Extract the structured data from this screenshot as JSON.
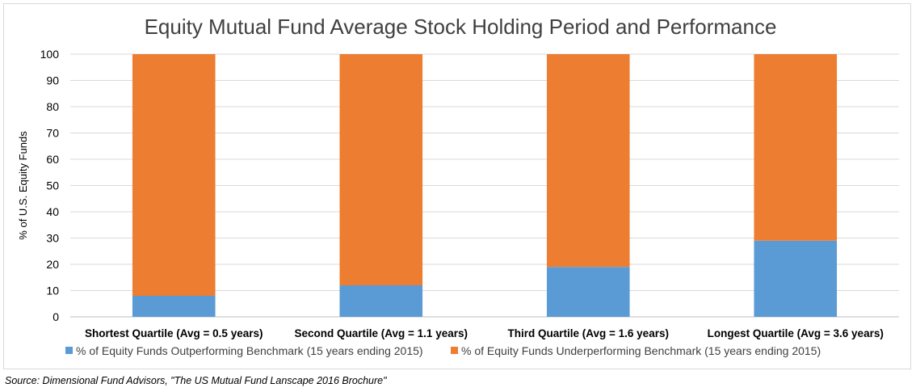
{
  "chart_data": {
    "type": "bar",
    "stacked": true,
    "title": "Equity Mutual Fund Average Stock Holding Period and Performance",
    "ylabel": "% of U.S. Equity Funds",
    "xlabel": "",
    "ylim": [
      0,
      100
    ],
    "yticks": [
      0,
      10,
      20,
      30,
      40,
      50,
      60,
      70,
      80,
      90,
      100
    ],
    "grid": true,
    "legend_position": "bottom",
    "categories": [
      "Shortest Quartile (Avg = 0.5 years)",
      "Second Quartile (Avg = 1.1 years)",
      "Third Quartile (Avg = 1.6 years)",
      "Longest Quartile (Avg = 3.6 years)"
    ],
    "series": [
      {
        "name": "% of Equity Funds Outperforming Benchmark (15 years ending 2015)",
        "color": "#5b9bd5",
        "values": [
          8,
          12,
          19,
          29
        ]
      },
      {
        "name": "% of Equity Funds Underperforming Benchmark (15 years ending 2015)",
        "color": "#ed7d31",
        "values": [
          92,
          88,
          81,
          71
        ]
      }
    ]
  },
  "source": "Source: Dimensional Fund Advisors, \"The US Mutual Fund Lanscape 2016 Brochure\""
}
